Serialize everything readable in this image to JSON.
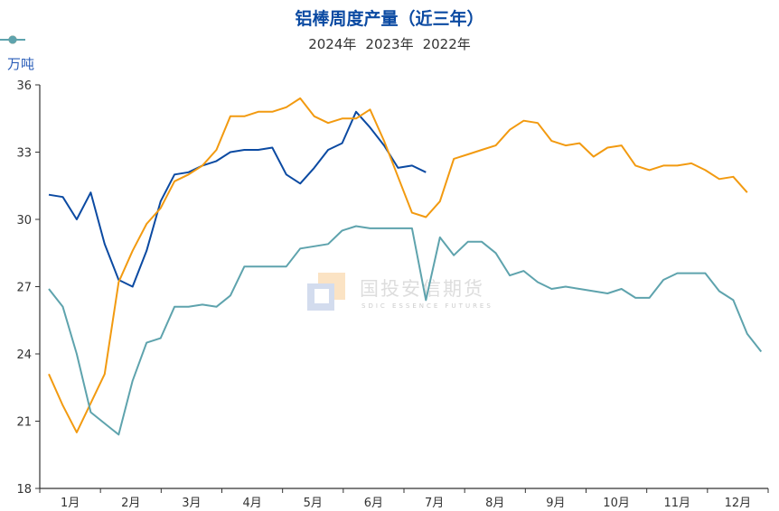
{
  "title": "铝棒周度产量（近三年）",
  "unit": "万吨",
  "watermark": {
    "cn": "国投安信期货",
    "en": "SDIC ESSENCE FUTURES"
  },
  "legend": [
    {
      "label": "2024年",
      "color": "#0b4aa2"
    },
    {
      "label": "2023年",
      "color": "#f29a10"
    },
    {
      "label": "2022年",
      "color": "#5ea3ad"
    }
  ],
  "chart_data": {
    "type": "line",
    "title": "铝棒周度产量（近三年）",
    "xlabel": "",
    "ylabel": "万吨",
    "ylim": [
      18,
      36
    ],
    "yticks": [
      18,
      21,
      24,
      27,
      30,
      33,
      36
    ],
    "xticks": [
      "1月",
      "2月",
      "3月",
      "4月",
      "5月",
      "6月",
      "7月",
      "8月",
      "9月",
      "10月",
      "11月",
      "12月"
    ],
    "grid": false,
    "legend_position": "top",
    "series": [
      {
        "name": "2024年",
        "color": "#0b4aa2",
        "values": [
          31.1,
          31.0,
          30.0,
          31.2,
          28.9,
          27.3,
          27.0,
          28.6,
          30.8,
          32.0,
          32.1,
          32.4,
          32.6,
          33.0,
          33.1,
          33.1,
          33.2,
          32.0,
          31.6,
          32.3,
          33.1,
          33.4,
          34.8,
          34.1,
          33.3,
          32.3,
          32.4,
          32.1
        ]
      },
      {
        "name": "2023年",
        "color": "#f29a10",
        "values": [
          23.1,
          21.7,
          20.5,
          21.8,
          23.1,
          27.2,
          28.6,
          29.8,
          30.5,
          31.7,
          32.0,
          32.4,
          33.1,
          34.6,
          34.6,
          34.8,
          34.8,
          35.0,
          35.4,
          34.6,
          34.3,
          34.5,
          34.5,
          34.9,
          33.5,
          31.9,
          30.3,
          30.1,
          30.8,
          32.7,
          32.9,
          33.1,
          33.3,
          34.0,
          34.4,
          34.3,
          33.5,
          33.3,
          33.4,
          32.8,
          33.2,
          33.3,
          32.4,
          32.2,
          32.4,
          32.4,
          32.5,
          32.2,
          31.8,
          31.9,
          31.2
        ]
      },
      {
        "name": "2022年",
        "color": "#5ea3ad",
        "values": [
          26.9,
          26.1,
          24.0,
          21.4,
          20.9,
          20.4,
          22.8,
          24.5,
          24.7,
          26.1,
          26.1,
          26.2,
          26.1,
          26.6,
          27.9,
          27.9,
          27.9,
          27.9,
          28.7,
          28.8,
          28.9,
          29.5,
          29.7,
          29.6,
          29.6,
          29.6,
          29.6,
          26.4,
          29.2,
          28.4,
          29.0,
          29.0,
          28.5,
          27.5,
          27.7,
          27.2,
          26.9,
          27.0,
          26.9,
          26.8,
          26.7,
          26.9,
          26.5,
          26.5,
          27.3,
          27.6,
          27.6,
          27.6,
          26.8,
          26.4,
          24.9,
          24.1
        ]
      }
    ]
  }
}
